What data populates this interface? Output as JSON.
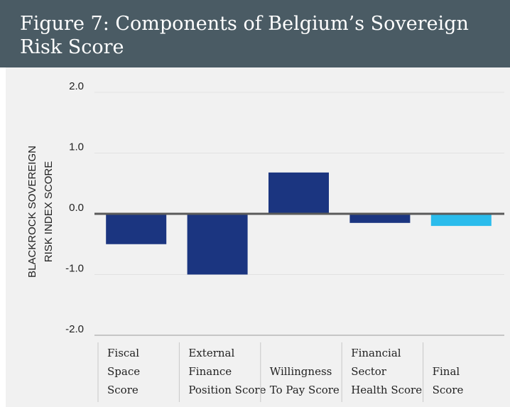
{
  "chart_data": {
    "type": "bar",
    "title": "Figure 7: Components of Belgium’s Sovereign\nRisk Score",
    "ylabel": "BLACKROCK SOVEREIGN\nRISK INDEX SCORE",
    "categories": [
      "Fiscal\nSpace\nScore",
      "External\nFinance\nPosition Score",
      "Willingness\nTo Pay Score",
      "Financial\nSector\nHealth Score",
      "Final\nScore"
    ],
    "values": [
      -0.5,
      -1.0,
      0.68,
      -0.15,
      -0.2
    ],
    "colors": [
      "#1b3580",
      "#1b3580",
      "#1b3580",
      "#1b3580",
      "#2bbcec"
    ],
    "ylim": [
      -2.0,
      2.0
    ],
    "yticks": [
      {
        "value": 2,
        "label": "2.0"
      },
      {
        "value": 1,
        "label": "1.0"
      },
      {
        "value": 0,
        "label": "0.0"
      },
      {
        "value": -1,
        "label": "-1.0"
      },
      {
        "value": -2,
        "label": "-2.0"
      }
    ],
    "grid": true
  }
}
